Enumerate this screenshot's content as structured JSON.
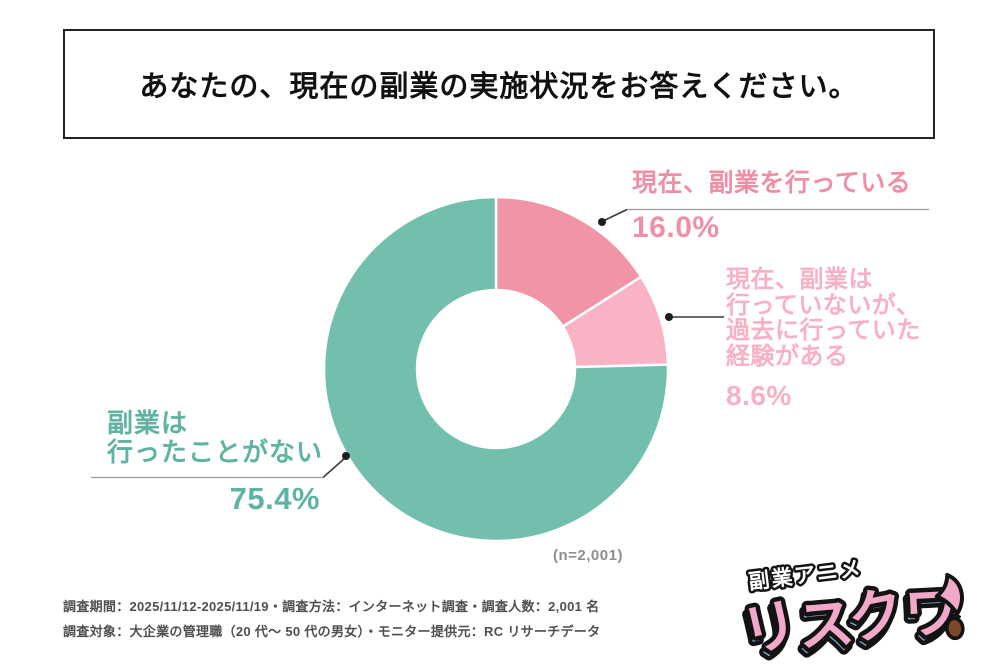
{
  "title": {
    "text": "あなたの、現在の副業の実施状況をお答えください。"
  },
  "chart_data": {
    "type": "pie",
    "subtype": "donut",
    "title": "あなたの、現在の副業の実施状況をお答えください。",
    "direction": "clockwise",
    "start_angle": "12-oclock",
    "sample_note": "(n=2,001)",
    "slices": [
      {
        "label": "現在、副業を行っている",
        "value": 16.0,
        "display_value": "16.0%",
        "color": "#f094a6",
        "label_color": "#ef8fa6"
      },
      {
        "label": "現在、副業は行っていないが、過去に行っていた経験がある",
        "value": 8.6,
        "display_value": "8.6%",
        "color": "#f9b3c4",
        "label_color": "#f8b0c4"
      },
      {
        "label": "副業は行ったことがない",
        "value": 75.4,
        "display_value": "75.4%",
        "color": "#72bfad",
        "label_color": "#5fb3a2"
      }
    ]
  },
  "callouts": {
    "slice1": {
      "title": "現在、副業を行っている",
      "value": "16.0%"
    },
    "slice2": {
      "line1": "現在、副業は",
      "line2": "行っていないが、",
      "line3": "過去に行っていた",
      "line4": "経験がある",
      "value": "8.6%"
    },
    "slice3": {
      "line1": "副業は",
      "line2": "行ったことがない",
      "value": "75.4%"
    }
  },
  "note": {
    "sample": "(n=2,001)"
  },
  "footer": {
    "line1": "調査期間：2025/11/12-2025/11/19・調査方法：インターネット調査・調査人数：2,001 名",
    "line2": "調査対象：大企業の管理職（20 代〜 50 代の男女）・モニター提供元：RC リサーチデータ"
  },
  "logo": {
    "tagline": "副業アニメ",
    "brand": "リスクワ",
    "colors": {
      "pink": "#f2a9c9",
      "blue": "#7fb4da",
      "outline": "#131313",
      "acorn": "#7c4a28"
    }
  }
}
